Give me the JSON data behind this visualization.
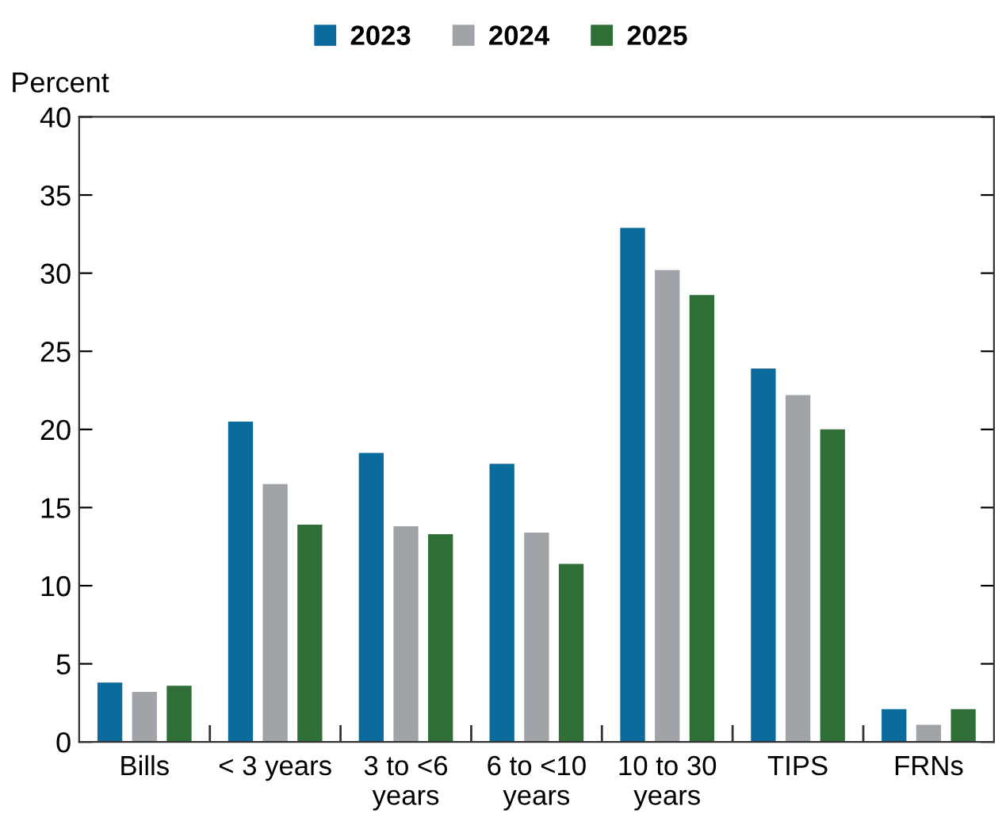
{
  "chart_data": {
    "type": "bar",
    "ylabel": "Percent",
    "categories": [
      "Bills",
      "< 3 years",
      "3 to <6\nyears",
      "6 to <10\nyears",
      "10 to 30\nyears",
      "TIPS",
      "FRNs"
    ],
    "series": [
      {
        "name": "2023",
        "color": "#0a6b9c",
        "values": [
          3.8,
          20.5,
          18.5,
          17.8,
          32.9,
          23.9,
          2.1
        ]
      },
      {
        "name": "2024",
        "color": "#a0a3a8",
        "values": [
          3.2,
          16.5,
          13.8,
          13.4,
          30.2,
          22.2,
          1.1
        ]
      },
      {
        "name": "2025",
        "color": "#2f6e37",
        "values": [
          3.6,
          13.9,
          13.3,
          11.4,
          28.6,
          20.0,
          2.1
        ]
      }
    ],
    "ylim": [
      0,
      40
    ],
    "yticks": [
      0,
      5,
      10,
      15,
      20,
      25,
      30,
      35,
      40
    ],
    "grid": false,
    "legend": "top"
  }
}
